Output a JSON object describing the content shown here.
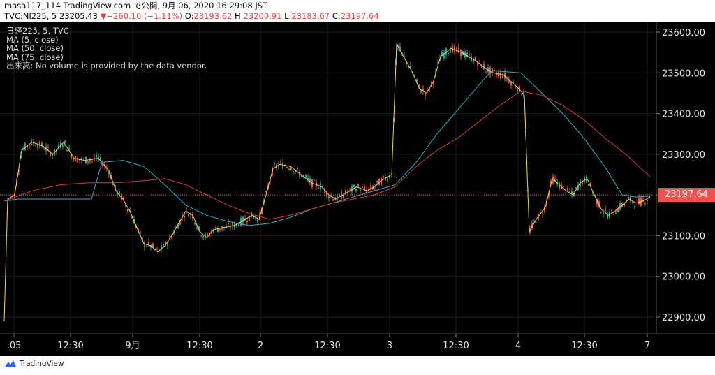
{
  "header": {
    "line1": "masa117_114 TradingView.com で公開, 9月 06, 2020 16:29:08 JST",
    "symbol": "TVC:NI225, 5",
    "last": "23205.43",
    "arrow": "▼",
    "change": "−260.10 (−1.11%)",
    "o_label": "O:",
    "o": "23193.62",
    "h_label": "H:",
    "h": "23200.91",
    "l_label": "L:",
    "l": "23183.67",
    "c_label": "C:",
    "c": "23197.64"
  },
  "legend": {
    "title": "日経225, 5, TVC",
    "ma5": "MA (5, close)",
    "ma50": "MA (50, close)",
    "ma75": "MA (75, close)",
    "volume": "出来高: No volume is provided by the data vendor."
  },
  "footer": {
    "brand": "TradingView"
  },
  "colors": {
    "up": "#26a69a",
    "down": "#ef5350",
    "ma5": "#f5d742",
    "ma50": "#26b8d0",
    "ma75": "#e53935",
    "bg": "#000000",
    "axis_text": "#e6e6e6"
  },
  "chart_data": {
    "type": "candlestick",
    "y_ticks": [
      23600,
      23500,
      23400,
      23300,
      23200,
      23100,
      23000,
      22900
    ],
    "y_tick_labels": [
      "23600.00",
      "23500.00",
      "23400.00",
      "23300.00",
      "23200.00",
      "23100.00",
      "23000.00",
      "22900.00"
    ],
    "ylim": [
      22870,
      23640
    ],
    "x_tick_labels": [
      ":05",
      "12:30",
      "9月",
      "12:30",
      "2",
      "12:30",
      "3",
      "12:30",
      "4",
      "12:30",
      "7"
    ],
    "last_price": 23197.64,
    "last_price_label": "23197.64",
    "series": [
      {
        "name": "MA (5, close)",
        "points": [
          [
            0,
            22890
          ],
          [
            5,
            23190
          ],
          [
            15,
            23200
          ],
          [
            25,
            23310
          ],
          [
            40,
            23330
          ],
          [
            55,
            23320
          ],
          [
            70,
            23300
          ],
          [
            85,
            23330
          ],
          [
            100,
            23290
          ],
          [
            115,
            23285
          ],
          [
            135,
            23290
          ],
          [
            150,
            23260
          ],
          [
            160,
            23210
          ],
          [
            170,
            23190
          ],
          [
            180,
            23160
          ],
          [
            190,
            23120
          ],
          [
            200,
            23080
          ],
          [
            210,
            23075
          ],
          [
            220,
            23060
          ],
          [
            230,
            23075
          ],
          [
            240,
            23100
          ],
          [
            250,
            23130
          ],
          [
            260,
            23160
          ],
          [
            270,
            23150
          ],
          [
            280,
            23110
          ],
          [
            290,
            23095
          ],
          [
            300,
            23115
          ],
          [
            315,
            23120
          ],
          [
            330,
            23125
          ],
          [
            345,
            23140
          ],
          [
            355,
            23150
          ],
          [
            365,
            23140
          ],
          [
            375,
            23200
          ],
          [
            385,
            23265
          ],
          [
            395,
            23275
          ],
          [
            410,
            23270
          ],
          [
            425,
            23250
          ],
          [
            440,
            23230
          ],
          [
            455,
            23220
          ],
          [
            465,
            23200
          ],
          [
            475,
            23190
          ],
          [
            485,
            23200
          ],
          [
            495,
            23210
          ],
          [
            505,
            23220
          ],
          [
            520,
            23210
          ],
          [
            530,
            23220
          ],
          [
            540,
            23235
          ],
          [
            555,
            23250
          ],
          [
            562,
            23570
          ],
          [
            572,
            23540
          ],
          [
            585,
            23500
          ],
          [
            595,
            23460
          ],
          [
            605,
            23450
          ],
          [
            615,
            23480
          ],
          [
            625,
            23540
          ],
          [
            640,
            23560
          ],
          [
            655,
            23550
          ],
          [
            665,
            23540
          ],
          [
            675,
            23530
          ],
          [
            690,
            23510
          ],
          [
            700,
            23500
          ],
          [
            715,
            23495
          ],
          [
            725,
            23480
          ],
          [
            735,
            23465
          ],
          [
            745,
            23445
          ],
          [
            752,
            23110
          ],
          [
            762,
            23140
          ],
          [
            775,
            23170
          ],
          [
            785,
            23240
          ],
          [
            795,
            23225
          ],
          [
            805,
            23210
          ],
          [
            815,
            23200
          ],
          [
            825,
            23230
          ],
          [
            835,
            23240
          ],
          [
            845,
            23200
          ],
          [
            855,
            23165
          ],
          [
            865,
            23150
          ],
          [
            875,
            23160
          ],
          [
            885,
            23175
          ],
          [
            895,
            23190
          ],
          [
            905,
            23180
          ],
          [
            915,
            23185
          ],
          [
            925,
            23195
          ]
        ]
      },
      {
        "name": "MA (50, close)",
        "points": [
          [
            0,
            23185
          ],
          [
            20,
            23190
          ],
          [
            60,
            23190
          ],
          [
            100,
            23190
          ],
          [
            125,
            23190
          ],
          [
            140,
            23280
          ],
          [
            170,
            23285
          ],
          [
            200,
            23270
          ],
          [
            230,
            23225
          ],
          [
            260,
            23175
          ],
          [
            290,
            23150
          ],
          [
            320,
            23135
          ],
          [
            350,
            23125
          ],
          [
            380,
            23130
          ],
          [
            410,
            23145
          ],
          [
            440,
            23165
          ],
          [
            470,
            23180
          ],
          [
            510,
            23200
          ],
          [
            540,
            23215
          ],
          [
            560,
            23225
          ],
          [
            590,
            23280
          ],
          [
            620,
            23350
          ],
          [
            650,
            23410
          ],
          [
            670,
            23450
          ],
          [
            690,
            23490
          ],
          [
            700,
            23505
          ],
          [
            740,
            23500
          ],
          [
            770,
            23450
          ],
          [
            800,
            23400
          ],
          [
            830,
            23340
          ],
          [
            860,
            23270
          ],
          [
            885,
            23200
          ],
          [
            905,
            23195
          ],
          [
            925,
            23197
          ]
        ]
      },
      {
        "name": "MA (75, close)",
        "points": [
          [
            0,
            23185
          ],
          [
            40,
            23210
          ],
          [
            80,
            23225
          ],
          [
            120,
            23230
          ],
          [
            160,
            23230
          ],
          [
            200,
            23235
          ],
          [
            230,
            23240
          ],
          [
            260,
            23225
          ],
          [
            290,
            23200
          ],
          [
            320,
            23175
          ],
          [
            350,
            23155
          ],
          [
            380,
            23140
          ],
          [
            410,
            23150
          ],
          [
            440,
            23165
          ],
          [
            470,
            23180
          ],
          [
            500,
            23190
          ],
          [
            530,
            23200
          ],
          [
            560,
            23220
          ],
          [
            590,
            23270
          ],
          [
            620,
            23310
          ],
          [
            650,
            23340
          ],
          [
            680,
            23380
          ],
          [
            710,
            23420
          ],
          [
            740,
            23455
          ],
          [
            770,
            23445
          ],
          [
            800,
            23420
          ],
          [
            830,
            23385
          ],
          [
            860,
            23340
          ],
          [
            890,
            23300
          ],
          [
            925,
            23245
          ]
        ]
      }
    ]
  }
}
